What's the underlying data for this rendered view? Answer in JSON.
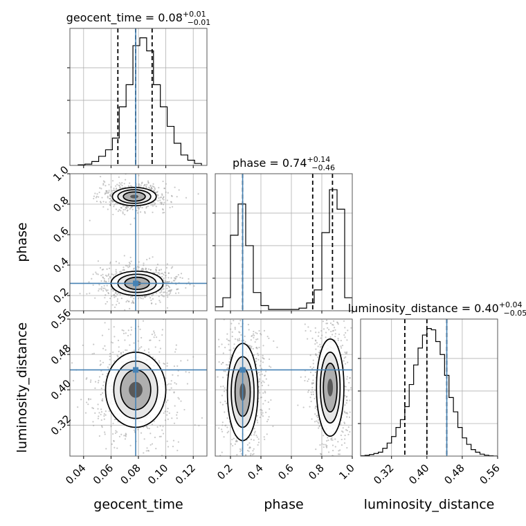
{
  "chart_data": {
    "type": "corner",
    "parameters": [
      {
        "name": "geocent_time",
        "title_value": "0.08",
        "err_plus": "+0.01",
        "err_minus": "−0.01",
        "range": [
          0.03,
          0.13
        ],
        "ticks": [
          0.04,
          0.06,
          0.08,
          0.1,
          0.12
        ],
        "tick_labels": [
          "0.04",
          "0.06",
          "0.08",
          "0.10",
          "0.12"
        ],
        "quantiles": [
          0.065,
          0.078,
          0.09
        ],
        "truth": 0.078
      },
      {
        "name": "phase",
        "title_value": "0.74",
        "err_plus": "+0.14",
        "err_minus": "−0.46",
        "range": [
          0.1,
          1.0
        ],
        "ticks": [
          0.2,
          0.4,
          0.6,
          0.8,
          1.0
        ],
        "tick_labels": [
          "0.2",
          "0.4",
          "0.6",
          "0.8",
          "1.0"
        ],
        "quantiles": [
          0.28,
          0.74,
          0.87
        ],
        "truth": 0.28
      },
      {
        "name": "luminosity_distance",
        "title_value": "0.40",
        "err_plus": "+0.04",
        "err_minus": "−0.05",
        "range": [
          0.25,
          0.56
        ],
        "ticks": [
          0.32,
          0.4,
          0.48,
          0.56
        ],
        "tick_labels": [
          "0.32",
          "0.40",
          "0.48",
          "0.56"
        ],
        "quantiles": [
          0.35,
          0.4,
          0.445
        ],
        "truth": 0.445
      }
    ],
    "histograms": [
      {
        "param": "geocent_time",
        "bin_edges": [
          0.036,
          0.041,
          0.046,
          0.051,
          0.056,
          0.061,
          0.066,
          0.071,
          0.076,
          0.081,
          0.086,
          0.091,
          0.096,
          0.101,
          0.106,
          0.111,
          0.116,
          0.121,
          0.126
        ],
        "counts": [
          0.005,
          0.01,
          0.03,
          0.07,
          0.12,
          0.21,
          0.45,
          0.62,
          0.92,
          0.98,
          0.88,
          0.62,
          0.45,
          0.3,
          0.17,
          0.08,
          0.04,
          0.015
        ]
      },
      {
        "param": "phase",
        "bin_edges": [
          0.1,
          0.15,
          0.2,
          0.25,
          0.3,
          0.35,
          0.4,
          0.45,
          0.5,
          0.55,
          0.6,
          0.65,
          0.7,
          0.75,
          0.8,
          0.85,
          0.9,
          0.95,
          1.0
        ],
        "counts": [
          0.03,
          0.1,
          0.58,
          0.82,
          0.5,
          0.14,
          0.04,
          0.01,
          0.01,
          0.01,
          0.01,
          0.02,
          0.06,
          0.16,
          0.6,
          0.93,
          0.78,
          0.1
        ]
      },
      {
        "param": "luminosity_distance",
        "bin_edges": [
          0.25,
          0.26,
          0.27,
          0.28,
          0.29,
          0.3,
          0.31,
          0.32,
          0.33,
          0.34,
          0.35,
          0.36,
          0.37,
          0.38,
          0.39,
          0.4,
          0.41,
          0.42,
          0.43,
          0.44,
          0.45,
          0.46,
          0.47,
          0.48,
          0.49,
          0.5,
          0.51,
          0.52,
          0.53,
          0.54,
          0.55,
          0.56
        ],
        "counts": [
          0.003,
          0.006,
          0.012,
          0.02,
          0.03,
          0.06,
          0.1,
          0.15,
          0.22,
          0.28,
          0.38,
          0.55,
          0.7,
          0.83,
          0.93,
          0.98,
          0.97,
          0.88,
          0.78,
          0.62,
          0.45,
          0.34,
          0.22,
          0.14,
          0.09,
          0.05,
          0.03,
          0.015,
          0.007,
          0.003,
          0.001
        ]
      }
    ],
    "contour_panels": [
      {
        "x": "geocent_time",
        "y": "phase",
        "modes": [
          {
            "cx": 0.077,
            "cy": 0.85,
            "rx": [
              0.016,
              0.012,
              0.008,
              0.003
            ],
            "ry": [
              0.06,
              0.045,
              0.03,
              0.012
            ]
          },
          {
            "cx": 0.079,
            "cy": 0.28,
            "rx": [
              0.019,
              0.014,
              0.009,
              0.003
            ],
            "ry": [
              0.08,
              0.06,
              0.04,
              0.015
            ]
          }
        ]
      },
      {
        "x": "geocent_time",
        "y": "luminosity_distance",
        "modes": [
          {
            "cx": 0.078,
            "cy": 0.4,
            "rx": [
              0.022,
              0.016,
              0.011,
              0.005
            ],
            "ry": [
              0.085,
              0.065,
              0.045,
              0.018
            ]
          }
        ]
      },
      {
        "x": "phase",
        "y": "luminosity_distance",
        "modes": [
          {
            "cx": 0.28,
            "cy": 0.395,
            "rx": [
              0.1,
              0.075,
              0.05,
              0.02
            ],
            "ry": [
              0.11,
              0.08,
              0.055,
              0.02
            ]
          },
          {
            "cx": 0.855,
            "cy": 0.405,
            "rx": [
              0.09,
              0.065,
              0.045,
              0.018
            ],
            "ry": [
              0.11,
              0.08,
              0.055,
              0.02
            ]
          }
        ]
      }
    ],
    "truth_color": "#4682b4",
    "contour_color": "#000000",
    "grid": true
  }
}
